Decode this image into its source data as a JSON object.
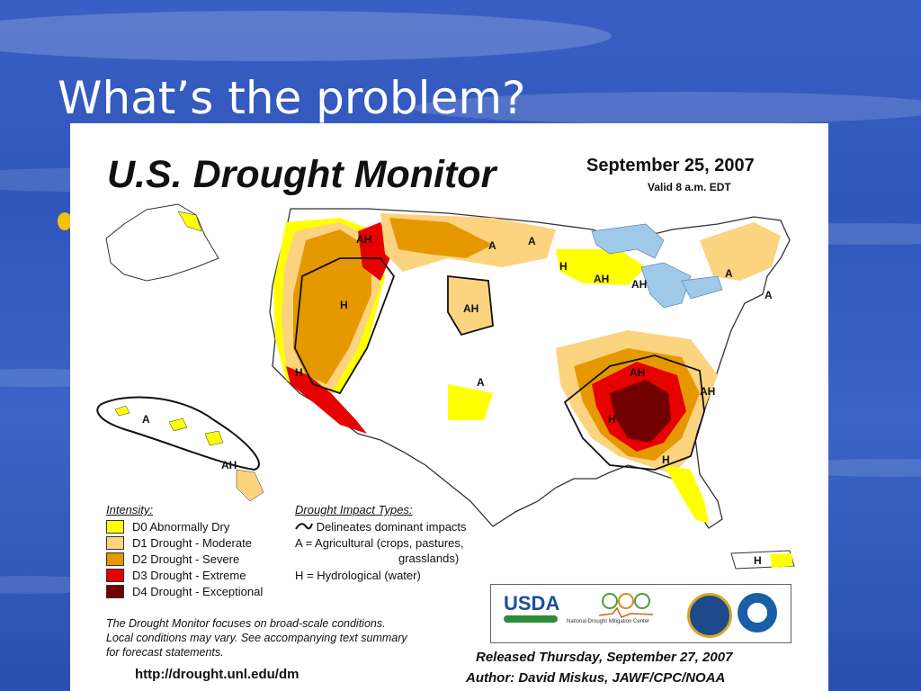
{
  "slide": {
    "title": "What’s the problem?"
  },
  "map": {
    "title": "U.S. Drought Monitor",
    "date": "September 25, 2007",
    "valid": "Valid 8 a.m. EDT",
    "intensity_heading": "Intensity:",
    "intensity_levels": [
      {
        "label": "D0 Abnormally Dry",
        "color": "#ffff00"
      },
      {
        "label": "D1 Drought - Moderate",
        "color": "#fcd37f"
      },
      {
        "label": "D2 Drought - Severe",
        "color": "#e69800"
      },
      {
        "label": "D3 Drought - Extreme",
        "color": "#e60000"
      },
      {
        "label": "D4 Drought - Exceptional",
        "color": "#730000"
      }
    ],
    "impact_heading": "Drought Impact Types:",
    "impact_line": "Delineates dominant impacts",
    "impact_a": "A = Agricultural (crops, pastures,",
    "impact_a2": "grasslands)",
    "impact_h": "H = Hydrological (water)",
    "footnote_1": "The Drought Monitor focuses on broad-scale conditions.",
    "footnote_2": "Local conditions may vary.  See accompanying text summary",
    "footnote_3": "for forecast statements.",
    "url": "http://drought.unl.edu/dm",
    "released": "Released Thursday, September 27, 2007",
    "author": "Author:  David Miskus, JAWF/CPC/NOAA",
    "logos": {
      "usda": "USDA",
      "ndmc": "National Drought Mitigation Center"
    },
    "region_labels": {
      "ah": "AH",
      "a": "A",
      "h": "H"
    }
  }
}
